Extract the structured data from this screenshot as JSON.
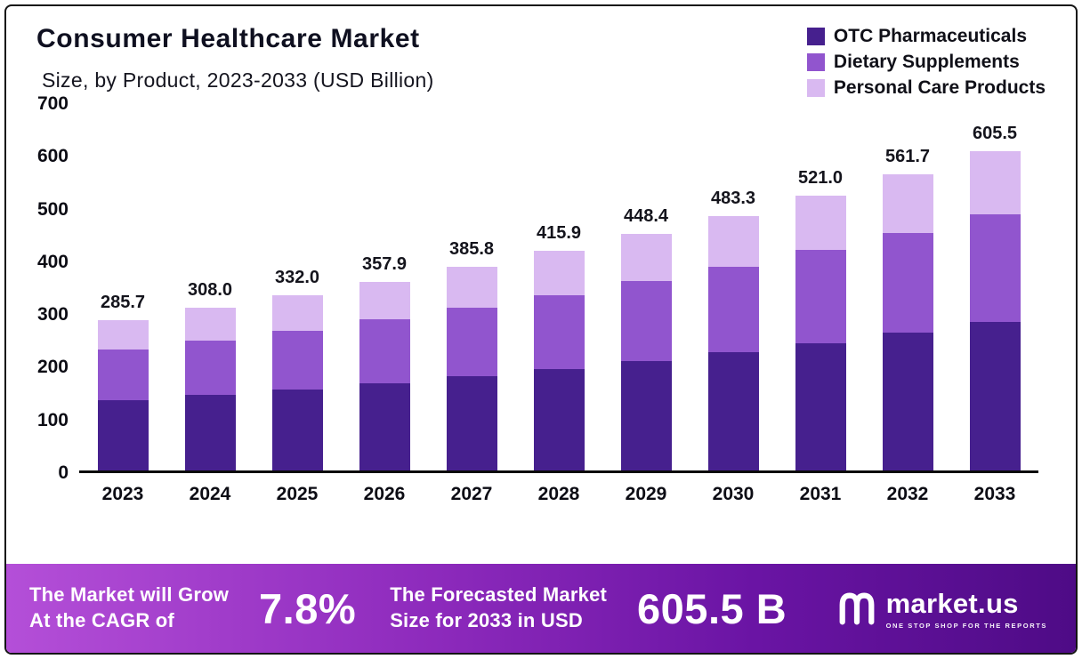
{
  "header": {
    "title": "Consumer Healthcare Market",
    "subtitle": "Size, by Product, 2023-2033 (USD Billion)"
  },
  "chart_data": {
    "type": "bar",
    "stacked": true,
    "title": "Consumer Healthcare Market",
    "subtitle": "Size, by Product, 2023-2033 (USD Billion)",
    "xlabel": "",
    "ylabel": "",
    "ylim": [
      0,
      700
    ],
    "yticks": [
      0,
      100,
      200,
      300,
      400,
      500,
      600,
      700
    ],
    "grid": false,
    "legend_position": "top-right",
    "categories": [
      "2023",
      "2024",
      "2025",
      "2026",
      "2027",
      "2028",
      "2029",
      "2030",
      "2031",
      "2032",
      "2033"
    ],
    "totals": [
      "285.7",
      "308.0",
      "332.0",
      "357.9",
      "385.8",
      "415.9",
      "448.4",
      "483.3",
      "521.0",
      "561.7",
      "605.5"
    ],
    "series": [
      {
        "name": "OTC Pharmaceuticals",
        "color": "#46208e",
        "values": [
          133,
          143,
          154,
          166,
          179,
          193,
          208,
          225,
          242,
          261,
          282
        ]
      },
      {
        "name": "Dietary Supplements",
        "color": "#9155ce",
        "values": [
          96,
          103,
          111,
          120,
          130,
          139,
          151,
          162,
          176,
          190,
          204
        ]
      },
      {
        "name": "Personal Care Products",
        "color": "#d9b9f1",
        "values": [
          56.7,
          62,
          67,
          71.9,
          76.8,
          83.9,
          89.4,
          96.3,
          103,
          110.7,
          119.5
        ]
      }
    ]
  },
  "banner": {
    "cagr_line1": "The Market will Grow",
    "cagr_line2": "At the CAGR of",
    "cagr_value": "7.8%",
    "forecast_line1": "The Forecasted Market",
    "forecast_line2": "Size for 2033 in USD",
    "forecast_value": "605.5 B",
    "brand": "market.us",
    "brand_tagline": "ONE STOP SHOP FOR THE REPORTS"
  }
}
